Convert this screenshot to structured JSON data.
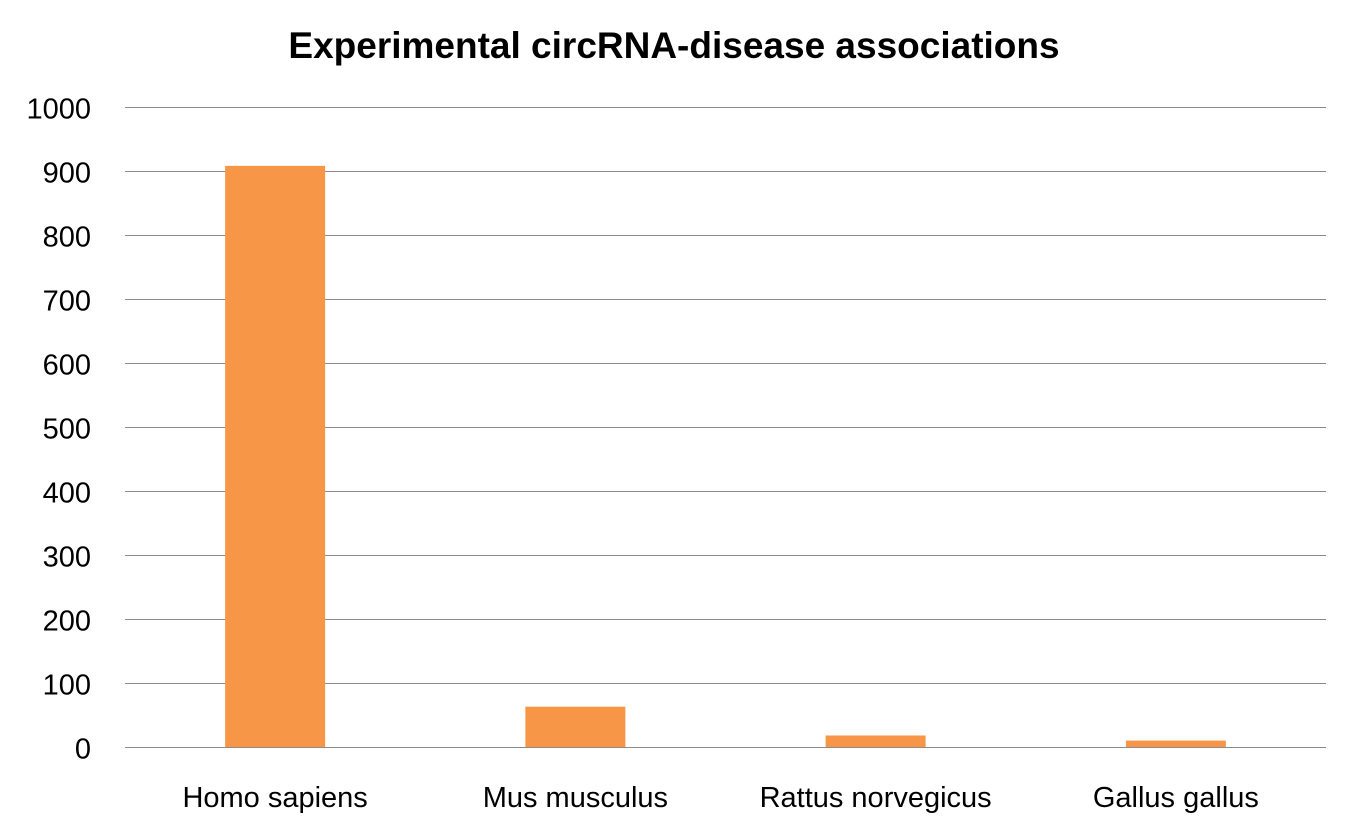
{
  "chart_data": {
    "type": "bar",
    "title": "Experimental circRNA-disease associations",
    "xlabel": "",
    "ylabel": "",
    "categories": [
      "Homo sapiens",
      "Mus musculus",
      "Rattus norvegicus",
      "Gallus gallus"
    ],
    "values": [
      908,
      63,
      18,
      10
    ],
    "ylim": [
      0,
      1000
    ],
    "yticks": [
      0,
      100,
      200,
      300,
      400,
      500,
      600,
      700,
      800,
      900,
      1000
    ],
    "grid": true,
    "legend": "none",
    "bar_color": "#F79646",
    "grid_color": "#8C8C8C"
  }
}
